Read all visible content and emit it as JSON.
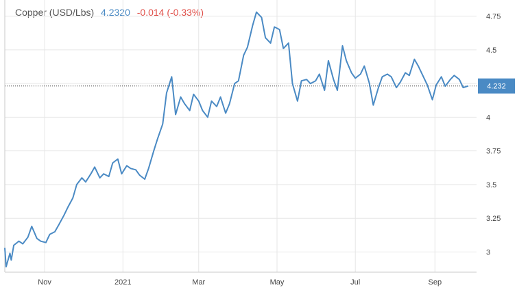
{
  "legend": {
    "name": "Copper (USD/Lbs)",
    "price": "4.2320",
    "change": "-0.014 (-0.33%)"
  },
  "colors": {
    "line": "#4a8ac4",
    "price_text": "#4a8ac4",
    "change_text": "#e0504a",
    "grid": "#e6e6e6",
    "last_price_bg": "#4a8ac4"
  },
  "last_price_label": "4.232",
  "chart_data": {
    "type": "line",
    "title": "",
    "xlabel": "",
    "ylabel": "",
    "x_ticks": [
      "Nov",
      "2021",
      "Mar",
      "May",
      "Jul",
      "Sep"
    ],
    "y_ticks": [
      "3",
      "3.25",
      "3.5",
      "3.75",
      "4",
      "4.25",
      "4.5",
      "4.75"
    ],
    "ylim": [
      2.85,
      4.87
    ],
    "grid": true,
    "last_value": 4.232,
    "x": [
      "2020-10-01",
      "2020-10-02",
      "2020-10-05",
      "2020-10-06",
      "2020-10-08",
      "2020-10-12",
      "2020-10-15",
      "2020-10-19",
      "2020-10-22",
      "2020-10-26",
      "2020-10-29",
      "2020-11-02",
      "2020-11-05",
      "2020-11-09",
      "2020-11-12",
      "2020-11-16",
      "2020-11-19",
      "2020-11-23",
      "2020-11-26",
      "2020-11-30",
      "2020-12-03",
      "2020-12-07",
      "2020-12-10",
      "2020-12-14",
      "2020-12-17",
      "2020-12-21",
      "2020-12-24",
      "2020-12-28",
      "2020-12-31",
      "2021-01-04",
      "2021-01-07",
      "2021-01-11",
      "2021-01-14",
      "2021-01-18",
      "2021-01-21",
      "2021-01-25",
      "2021-01-28",
      "2021-02-01",
      "2021-02-04",
      "2021-02-08",
      "2021-02-11",
      "2021-02-15",
      "2021-02-18",
      "2021-02-22",
      "2021-02-25",
      "2021-03-01",
      "2021-03-04",
      "2021-03-08",
      "2021-03-11",
      "2021-03-15",
      "2021-03-18",
      "2021-03-22",
      "2021-03-25",
      "2021-03-29",
      "2021-04-01",
      "2021-04-05",
      "2021-04-08",
      "2021-04-12",
      "2021-04-15",
      "2021-04-19",
      "2021-04-22",
      "2021-04-26",
      "2021-04-29",
      "2021-05-03",
      "2021-05-06",
      "2021-05-10",
      "2021-05-13",
      "2021-05-17",
      "2021-05-20",
      "2021-05-24",
      "2021-05-27",
      "2021-05-31",
      "2021-06-03",
      "2021-06-07",
      "2021-06-10",
      "2021-06-14",
      "2021-06-17",
      "2021-06-21",
      "2021-06-24",
      "2021-06-28",
      "2021-07-01",
      "2021-07-05",
      "2021-07-08",
      "2021-07-12",
      "2021-07-15",
      "2021-07-19",
      "2021-07-22",
      "2021-07-26",
      "2021-07-29",
      "2021-08-02",
      "2021-08-05",
      "2021-08-09",
      "2021-08-12",
      "2021-08-16",
      "2021-08-19",
      "2021-08-23",
      "2021-08-26",
      "2021-08-30",
      "2021-09-02",
      "2021-09-06",
      "2021-09-09",
      "2021-09-13",
      "2021-09-16",
      "2021-09-20",
      "2021-09-23",
      "2021-09-27"
    ],
    "series": [
      {
        "values": [
          3.03,
          2.89,
          2.99,
          2.94,
          3.05,
          3.08,
          3.06,
          3.11,
          3.19,
          3.1,
          3.08,
          3.07,
          3.13,
          3.15,
          3.2,
          3.27,
          3.33,
          3.4,
          3.5,
          3.55,
          3.52,
          3.58,
          3.63,
          3.55,
          3.58,
          3.56,
          3.66,
          3.69,
          3.58,
          3.64,
          3.62,
          3.61,
          3.57,
          3.54,
          3.62,
          3.75,
          3.84,
          3.95,
          4.18,
          4.3,
          4.02,
          4.15,
          4.1,
          4.05,
          4.17,
          4.12,
          4.05,
          4.0,
          4.12,
          4.08,
          4.15,
          4.03,
          4.1,
          4.25,
          4.27,
          4.46,
          4.52,
          4.68,
          4.78,
          4.74,
          4.59,
          4.55,
          4.67,
          4.65,
          4.51,
          4.55,
          4.25,
          4.12,
          4.27,
          4.28,
          4.25,
          4.27,
          4.32,
          4.2,
          4.42,
          4.28,
          4.2,
          4.53,
          4.42,
          4.33,
          4.29,
          4.32,
          4.38,
          4.25,
          4.09,
          4.22,
          4.3,
          4.32,
          4.3,
          4.22,
          4.26,
          4.33,
          4.31,
          4.43,
          4.38,
          4.3,
          4.24,
          4.13,
          4.24,
          4.3,
          4.23,
          4.28,
          4.31,
          4.28,
          4.22,
          4.232
        ]
      }
    ]
  }
}
